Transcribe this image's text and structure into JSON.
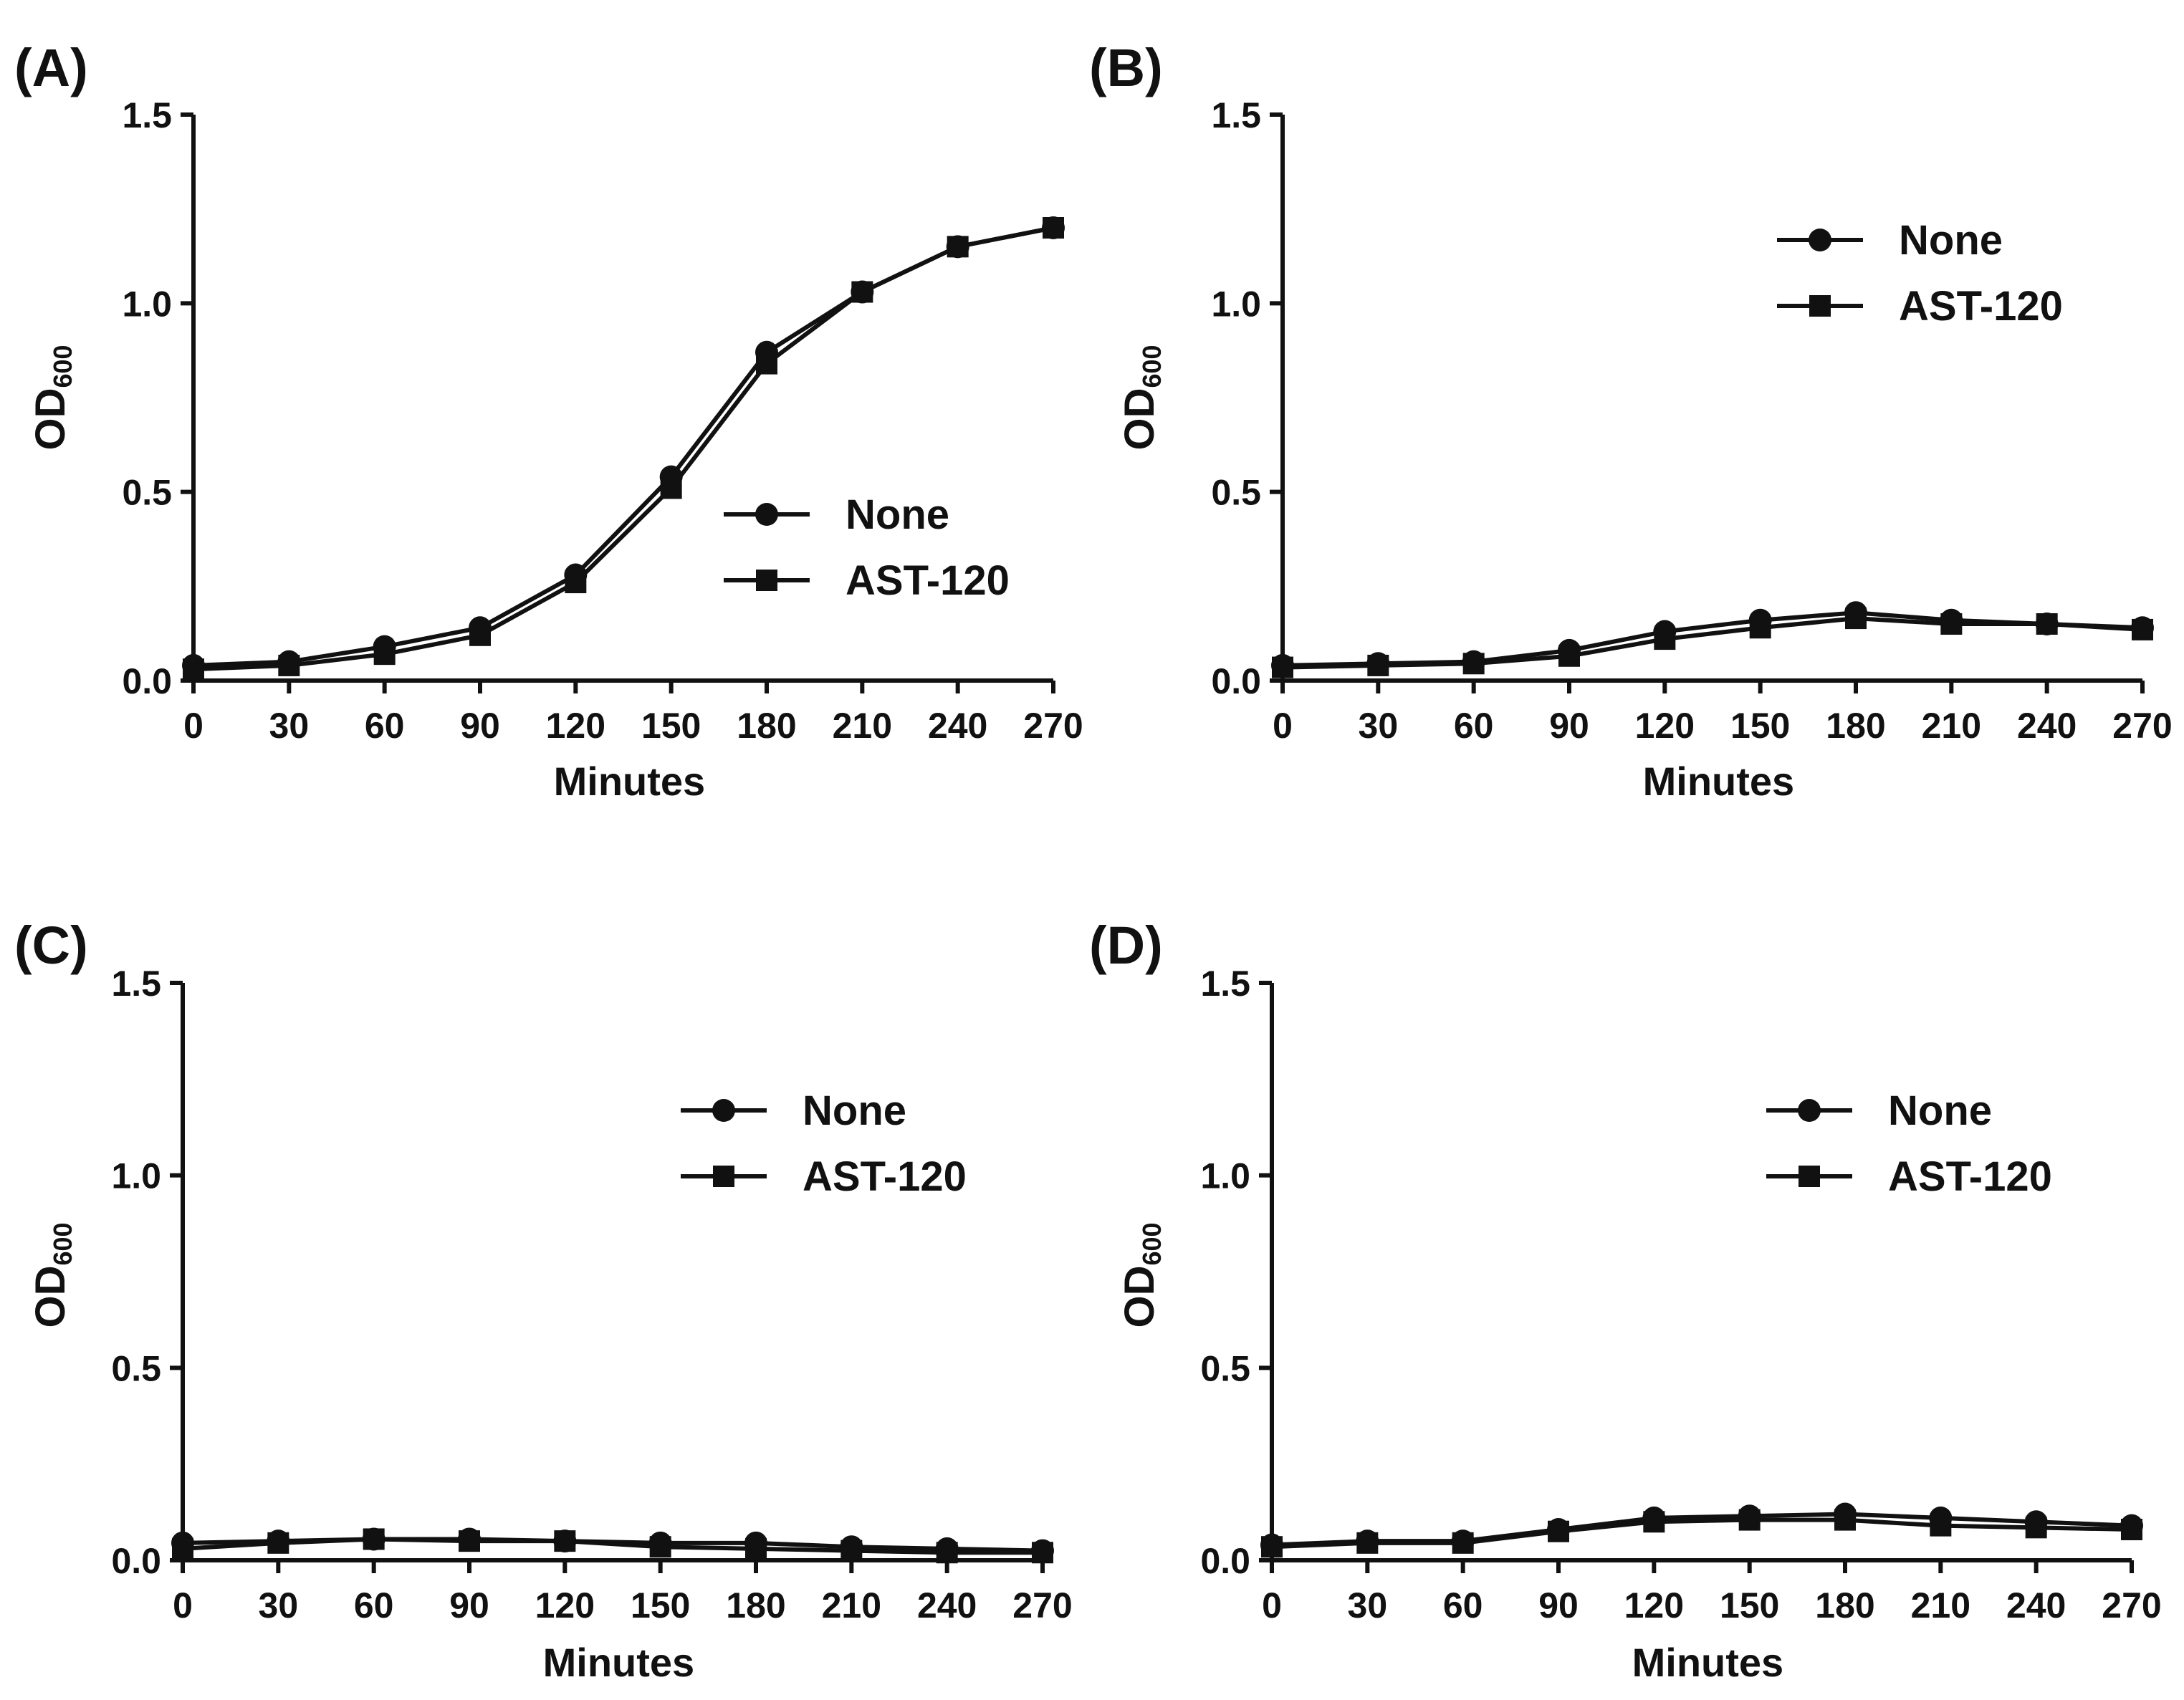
{
  "chart_data": [
    {
      "type": "line",
      "panel_label": "(A)",
      "x": [
        0,
        30,
        60,
        90,
        120,
        150,
        180,
        210,
        240,
        270
      ],
      "xticks": [
        "0",
        "30",
        "60",
        "90",
        "120",
        "150",
        "180",
        "210",
        "240",
        "270"
      ],
      "xlabel": "Minutes",
      "ylabel_main": "OD",
      "ylabel_sub": "600",
      "yticks": [
        "0.0",
        "0.5",
        "1.0",
        "1.5"
      ],
      "xlim": [
        0,
        270
      ],
      "ylim": [
        0,
        1.5
      ],
      "legend_position": "middle-right",
      "series": [
        {
          "name": "None",
          "marker": "circle",
          "values": [
            0.04,
            0.05,
            0.09,
            0.14,
            0.28,
            0.54,
            0.87,
            1.03,
            1.15,
            1.2
          ]
        },
        {
          "name": "AST-120",
          "marker": "square",
          "values": [
            0.03,
            0.04,
            0.07,
            0.12,
            0.26,
            0.51,
            0.84,
            1.03,
            1.15,
            1.2
          ]
        }
      ]
    },
    {
      "type": "line",
      "panel_label": "(B)",
      "x": [
        0,
        30,
        60,
        90,
        120,
        150,
        180,
        210,
        240,
        270
      ],
      "xticks": [
        "0",
        "30",
        "60",
        "90",
        "120",
        "150",
        "180",
        "210",
        "240",
        "270"
      ],
      "xlabel": "Minutes",
      "ylabel_main": "OD",
      "ylabel_sub": "600",
      "yticks": [
        "0.0",
        "0.5",
        "1.0",
        "1.5"
      ],
      "xlim": [
        0,
        270
      ],
      "ylim": [
        0,
        1.5
      ],
      "legend_position": "top-right",
      "series": [
        {
          "name": "None",
          "marker": "circle",
          "values": [
            0.04,
            0.045,
            0.05,
            0.08,
            0.13,
            0.16,
            0.18,
            0.16,
            0.15,
            0.14
          ]
        },
        {
          "name": "AST-120",
          "marker": "square",
          "values": [
            0.035,
            0.04,
            0.045,
            0.065,
            0.11,
            0.14,
            0.165,
            0.15,
            0.15,
            0.135
          ]
        }
      ]
    },
    {
      "type": "line",
      "panel_label": "(C)",
      "x": [
        0,
        30,
        60,
        90,
        120,
        150,
        180,
        210,
        240,
        270
      ],
      "xticks": [
        "0",
        "30",
        "60",
        "90",
        "120",
        "150",
        "180",
        "210",
        "240",
        "270"
      ],
      "xlabel": "Minutes",
      "ylabel_main": "OD",
      "ylabel_sub": "600",
      "yticks": [
        "0.0",
        "0.5",
        "1.0",
        "1.5"
      ],
      "xlim": [
        0,
        270
      ],
      "ylim": [
        0,
        1.5
      ],
      "legend_position": "top-right",
      "series": [
        {
          "name": "None",
          "marker": "circle",
          "values": [
            0.045,
            0.05,
            0.055,
            0.055,
            0.05,
            0.045,
            0.045,
            0.035,
            0.03,
            0.025
          ]
        },
        {
          "name": "AST-120",
          "marker": "square",
          "values": [
            0.03,
            0.045,
            0.055,
            0.05,
            0.05,
            0.035,
            0.03,
            0.025,
            0.02,
            0.02
          ]
        }
      ]
    },
    {
      "type": "line",
      "panel_label": "(D)",
      "x": [
        0,
        30,
        60,
        90,
        120,
        150,
        180,
        210,
        240,
        270
      ],
      "xticks": [
        "0",
        "30",
        "60",
        "90",
        "120",
        "150",
        "180",
        "210",
        "240",
        "270"
      ],
      "xlabel": "Minutes",
      "ylabel_main": "OD",
      "ylabel_sub": "600",
      "yticks": [
        "0.0",
        "0.5",
        "1.0",
        "1.5"
      ],
      "xlim": [
        0,
        270
      ],
      "ylim": [
        0,
        1.5
      ],
      "legend_position": "top-right",
      "series": [
        {
          "name": "None",
          "marker": "circle",
          "values": [
            0.04,
            0.05,
            0.05,
            0.08,
            0.11,
            0.115,
            0.12,
            0.11,
            0.1,
            0.09
          ]
        },
        {
          "name": "AST-120",
          "marker": "square",
          "values": [
            0.035,
            0.045,
            0.045,
            0.075,
            0.1,
            0.105,
            0.105,
            0.09,
            0.085,
            0.08
          ]
        }
      ]
    }
  ]
}
